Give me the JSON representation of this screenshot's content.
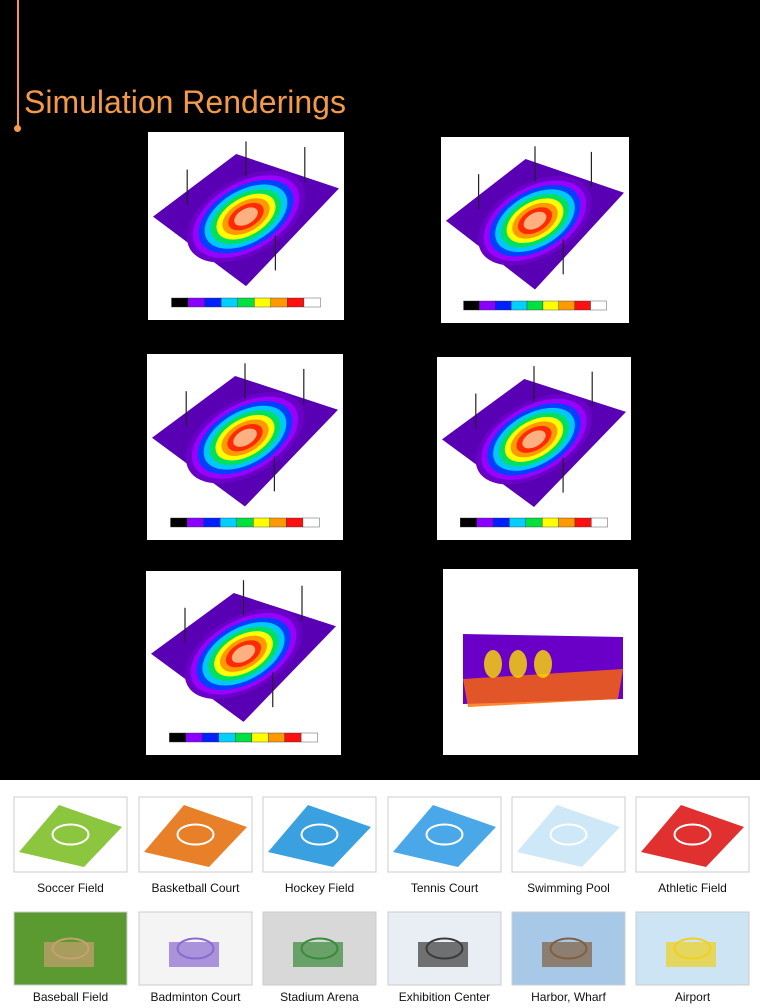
{
  "header": {
    "title": "Simulation Renderings"
  },
  "applications": [
    "Soccer Field",
    "Basketball Court",
    "Hockey Field",
    "Tennis Court",
    "Swimming Pool",
    "Athletic Field",
    "Baseball Field",
    "Badminton Court",
    "Stadium Arena",
    "Exhibition Center",
    "Harbor, Wharf",
    "Airport"
  ]
}
